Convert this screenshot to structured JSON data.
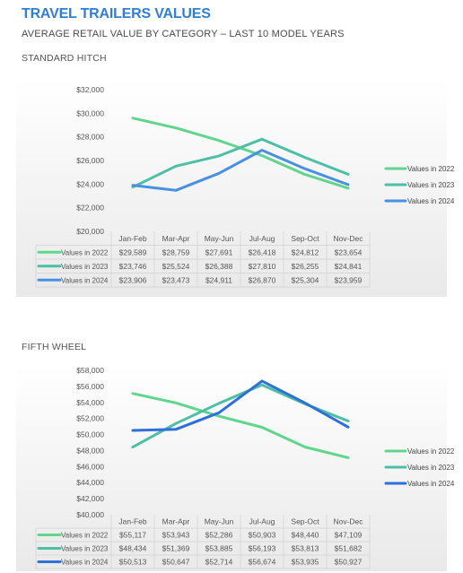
{
  "header": {
    "title": "TRAVEL TRAILERS VALUES",
    "subtitle": "AVERAGE RETAIL VALUE BY CATEGORY – LAST 10 MODEL YEARS"
  },
  "chart_data": [
    {
      "type": "line",
      "title": "STANDARD HITCH",
      "categories": [
        "Jan-Feb",
        "Mar-Apr",
        "May-Jun",
        "Jul-Aug",
        "Sep-Oct",
        "Nov-Dec"
      ],
      "ylim": [
        20000,
        32000
      ],
      "yticks": [
        "$20,000",
        "$22,000",
        "$24,000",
        "$26,000",
        "$28,000",
        "$30,000",
        "$32,000"
      ],
      "grid": false,
      "legend": "right",
      "series": [
        {
          "name": "Values in 2022",
          "color": "#5fd68c",
          "values": [
            29589,
            28759,
            27691,
            26418,
            24812,
            23654
          ],
          "labels": [
            "$29,589",
            "$28,759",
            "$27,691",
            "$26,418",
            "$24,812",
            "$23,654"
          ]
        },
        {
          "name": "Values in 2023",
          "color": "#4cbfa6",
          "values": [
            23746,
            25524,
            26388,
            27810,
            26255,
            24841
          ],
          "labels": [
            "$23,746",
            "$25,524",
            "$26,388",
            "$27,810",
            "$26,255",
            "$24,841"
          ]
        },
        {
          "name": "Values in 2024",
          "color": "#4a90e2",
          "values": [
            23906,
            23473,
            24911,
            26870,
            25304,
            23959
          ],
          "labels": [
            "$23,906",
            "$23,473",
            "$24,911",
            "$26,870",
            "$25,304",
            "$23,959"
          ]
        }
      ]
    },
    {
      "type": "line",
      "title": "FIFTH WHEEL",
      "categories": [
        "Jan-Feb",
        "Mar-Apr",
        "May-Jun",
        "Jul-Aug",
        "Sep-Oct",
        "Nov-Dec"
      ],
      "ylim": [
        40000,
        58000
      ],
      "yticks": [
        "$40,000",
        "$42,000",
        "$44,000",
        "$46,000",
        "$48,000",
        "$50,000",
        "$52,000",
        "$54,000",
        "$56,000",
        "$58,000"
      ],
      "grid": false,
      "legend": "right",
      "series": [
        {
          "name": "Values in 2022",
          "color": "#5fd68c",
          "values": [
            55117,
            53943,
            52286,
            50903,
            48440,
            47109
          ],
          "labels": [
            "$55,117",
            "$53,943",
            "$52,286",
            "$50,903",
            "$48,440",
            "$47,109"
          ]
        },
        {
          "name": "Values in 2023",
          "color": "#4cbfa6",
          "values": [
            48434,
            51369,
            53885,
            56193,
            53813,
            51682
          ],
          "labels": [
            "$48,434",
            "$51,369",
            "$53,885",
            "$56,193",
            "$53,813",
            "$51,682"
          ]
        },
        {
          "name": "Values in 2024",
          "color": "#2f6fd8",
          "values": [
            50513,
            50647,
            52714,
            56674,
            53935,
            50927
          ],
          "labels": [
            "$50,513",
            "$50,647",
            "$52,714",
            "$56,674",
            "$53,935",
            "$50,927"
          ]
        }
      ]
    }
  ]
}
